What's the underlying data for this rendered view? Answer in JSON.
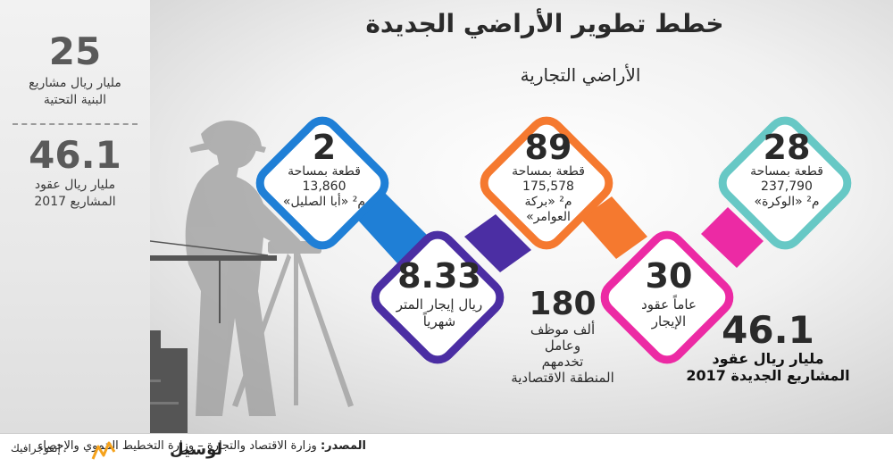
{
  "title": "خطط تطوير الأراضي الجديدة",
  "subtitle": "الأراضي التجارية",
  "sidebar": {
    "stat1_value": "25",
    "stat1_label_line1": "مليار ريال مشاريع",
    "stat1_label_line2": "البنية التحتية",
    "stat2_value": "46.1",
    "stat2_label_line1": "مليار ريال عقود",
    "stat2_label_line2": "المشاريع 2017"
  },
  "plots": [
    {
      "count": "2",
      "line1": "قطعة بمساحة",
      "area": "13,860",
      "line3": "م² «أبا الصليل»",
      "line4": "",
      "color": "#1f7fd6"
    },
    {
      "count": "89",
      "line1": "قطعة بمساحة",
      "area": "175,578",
      "line3": "م² «بركة",
      "line4": "العوامر»",
      "color": "#f5792f"
    },
    {
      "count": "28",
      "line1": "قطعة بمساحة",
      "area": "237,790",
      "line3": "م² «الوكرة»",
      "line4": "",
      "color": "#67c8c5"
    }
  ],
  "rent": {
    "value": "8.33",
    "line1": "ريال إيجار المتر",
    "line2": "شهرياً",
    "color": "#4b2ea3"
  },
  "lease": {
    "value": "30",
    "line1": "عاماً عقود",
    "line2": "الإيجار",
    "color": "#ec2aa4"
  },
  "workers": {
    "value": "180",
    "line1": "ألف موظف",
    "line2": "وعامل",
    "line3": "تخدمهم",
    "line4": "المنطقة الاقتصادية"
  },
  "total": {
    "value": "46.1",
    "line1": "مليار ريال عقود",
    "line2": "المشاريع الجديدة 2017"
  },
  "footer": {
    "source_label": "المصدر:",
    "source_text": "وزارة الاقتصاد والتجارة – وزارة التخطيط التنموي والإحصاء",
    "brand_name": "لوسيل",
    "brand_sub": "إنفوجرافيك"
  }
}
